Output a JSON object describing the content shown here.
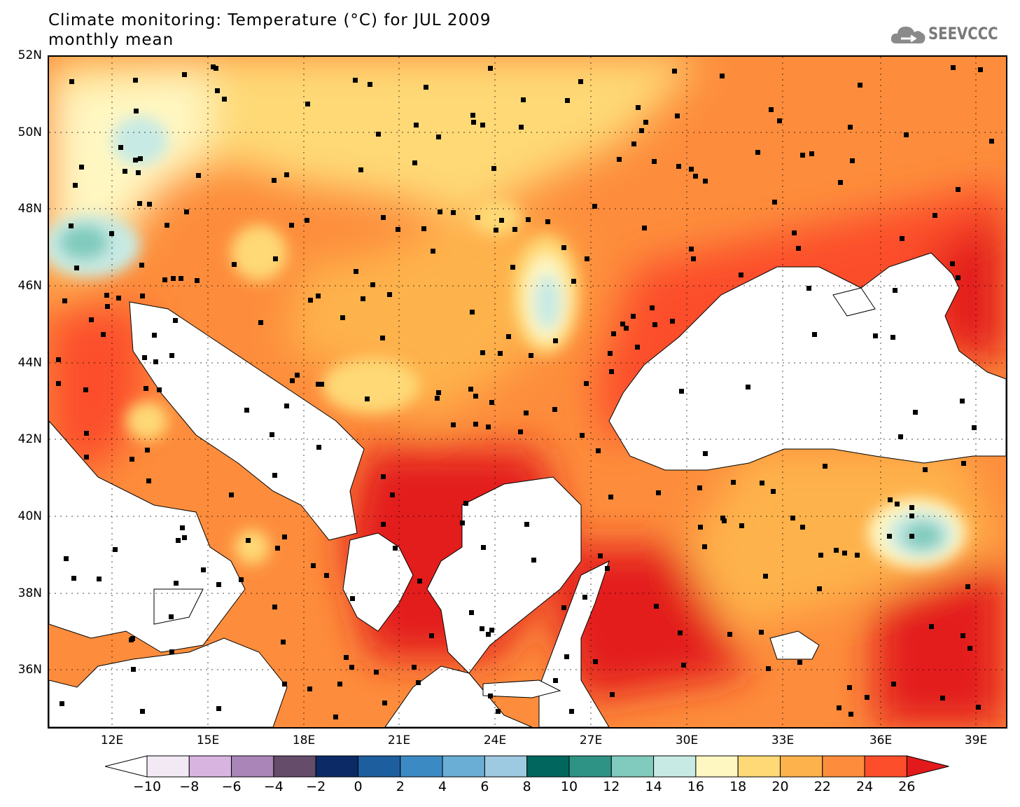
{
  "header": {
    "title": "Climate monitoring: Temperature (°C) for JUL 2009",
    "subtitle": "monthly mean"
  },
  "logo": {
    "icon": "cloud-logo-icon",
    "text": "SEEVCCC"
  },
  "map": {
    "lat_labels": [
      "52N",
      "50N",
      "48N",
      "46N",
      "44N",
      "42N",
      "40N",
      "38N",
      "36N"
    ],
    "lon_labels": [
      "12E",
      "15E",
      "18E",
      "21E",
      "24E",
      "27E",
      "30E",
      "33E",
      "36E",
      "39E"
    ],
    "gridlines": "dotted",
    "station_marker": "black-square"
  },
  "legend": {
    "ticks": [
      "-10",
      "-8",
      "-6",
      "-4",
      "-2",
      "0",
      "2",
      "4",
      "6",
      "8",
      "10",
      "12",
      "14",
      "16",
      "18",
      "20",
      "22",
      "24",
      "26"
    ],
    "colors": [
      "#f2e9f5",
      "#d8b5e0",
      "#aa86b8",
      "#654c6b",
      "#0b2a66",
      "#1d5e9e",
      "#3c8ac4",
      "#6aaed6",
      "#9ecae1",
      "#00665e",
      "#2e9385",
      "#80cbbd",
      "#c7eae4",
      "#fff7c2",
      "#fed976",
      "#feb24c",
      "#fd8d3c",
      "#fc4e2a",
      "#e31a1c"
    ]
  }
}
